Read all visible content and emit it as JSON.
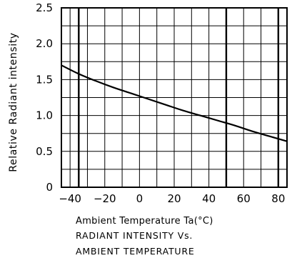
{
  "chart_data": {
    "type": "line",
    "title": "",
    "xlabel": "Ambient Temperature Ta(°C)",
    "ylabel": "Relative Radiant intensity",
    "xlim": [
      -45,
      85
    ],
    "ylim": [
      0,
      2.5
    ],
    "xticks": [
      -40,
      -20,
      0,
      20,
      40,
      60,
      80
    ],
    "xtick_labels": [
      "−40",
      "−20",
      "0",
      "20",
      "40",
      "60",
      "80"
    ],
    "yticks": [
      0,
      0.5,
      1.0,
      1.5,
      2.0,
      2.5
    ],
    "ytick_labels": [
      "0",
      "0.5",
      "1.0",
      "1.5",
      "2.0",
      "2.5"
    ],
    "grid": true,
    "heavy_vertical_gridlines_x": [
      -35,
      50,
      80
    ],
    "series": [
      {
        "x": [
          -45,
          -35,
          -25,
          -15,
          -5,
          5,
          15,
          25,
          35,
          45,
          55,
          65,
          75,
          85
        ],
        "y": [
          1.7,
          1.58,
          1.48,
          1.39,
          1.31,
          1.23,
          1.15,
          1.07,
          1.0,
          0.93,
          0.86,
          0.78,
          0.71,
          0.64
        ],
        "color": "#000000"
      }
    ]
  },
  "captions": {
    "line1": "RADIANT  INTENSITY  Vs.",
    "line2": "AMBIENT  TEMPERATURE"
  }
}
